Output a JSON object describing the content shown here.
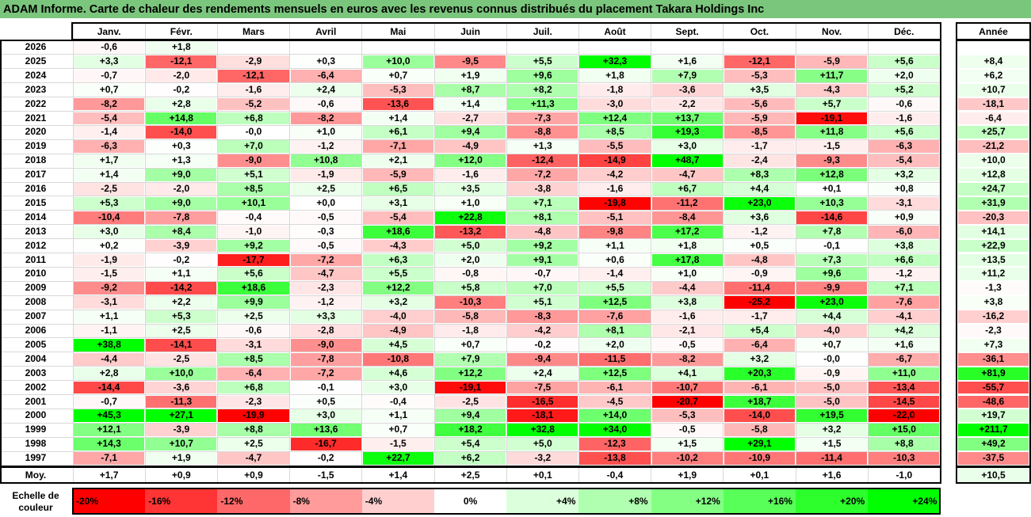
{
  "title": "ADAM Informe. Carte de chaleur des rendements mensuels en euros avec les revenus connus distribués du placement Takara Holdings Inc",
  "chart_data": {
    "type": "heatmap",
    "months": [
      "Janv.",
      "Févr.",
      "Mars",
      "Avril",
      "Mai",
      "Juin",
      "Juil.",
      "Août",
      "Sept.",
      "Oct.",
      "Nov.",
      "Déc."
    ],
    "year_label": "Année",
    "rows": [
      {
        "year": "2026",
        "values": [
          "-0,6",
          "+1,8",
          "",
          "",
          "",
          "",
          "",
          "",
          "",
          "",
          "",
          ""
        ],
        "annual": ""
      },
      {
        "year": "2025",
        "values": [
          "+3,3",
          "-12,1",
          "-2,9",
          "+0,3",
          "+10,0",
          "-9,5",
          "+5,5",
          "+32,3",
          "+1,6",
          "-12,1",
          "-5,9",
          "+5,6"
        ],
        "annual": "+8,4"
      },
      {
        "year": "2024",
        "values": [
          "-0,7",
          "-2,0",
          "-12,1",
          "-6,4",
          "+0,7",
          "+1,9",
          "+9,6",
          "+1,8",
          "+7,9",
          "-5,3",
          "+11,7",
          "+2,0"
        ],
        "annual": "+6,2"
      },
      {
        "year": "2023",
        "values": [
          "+0,7",
          "-0,2",
          "-1,6",
          "+2,4",
          "-5,3",
          "+8,7",
          "+8,2",
          "-1,8",
          "-3,6",
          "+3,5",
          "-4,3",
          "+5,2"
        ],
        "annual": "+10,7"
      },
      {
        "year": "2022",
        "values": [
          "-8,2",
          "+2,8",
          "-5,2",
          "-0,6",
          "-13,6",
          "+1,4",
          "+11,3",
          "-3,0",
          "-2,2",
          "-5,6",
          "+5,7",
          "-0,6"
        ],
        "annual": "-18,1"
      },
      {
        "year": "2021",
        "values": [
          "-5,4",
          "+14,8",
          "+6,8",
          "-8,2",
          "+1,4",
          "-2,7",
          "-7,3",
          "+12,4",
          "+13,7",
          "-5,9",
          "-19,1",
          "-1,6"
        ],
        "annual": "-6,4"
      },
      {
        "year": "2020",
        "values": [
          "-1,4",
          "-14,0",
          "-0,0",
          "+1,0",
          "+6,1",
          "+9,4",
          "-8,8",
          "+8,5",
          "+19,3",
          "-8,5",
          "+11,8",
          "+5,6"
        ],
        "annual": "+25,7"
      },
      {
        "year": "2019",
        "values": [
          "-6,3",
          "+0,3",
          "+7,0",
          "-1,2",
          "-7,1",
          "-4,9",
          "+1,3",
          "-5,5",
          "+3,0",
          "-1,7",
          "-1,5",
          "-6,3"
        ],
        "annual": "-21,2"
      },
      {
        "year": "2018",
        "values": [
          "+1,7",
          "+1,3",
          "-9,0",
          "+10,8",
          "+2,1",
          "+12,0",
          "-12,4",
          "-14,9",
          "+48,7",
          "-2,4",
          "-9,3",
          "-5,4"
        ],
        "annual": "+10,0"
      },
      {
        "year": "2017",
        "values": [
          "+1,4",
          "+9,0",
          "+5,1",
          "-1,9",
          "-5,9",
          "-1,6",
          "-7,2",
          "-4,2",
          "-4,7",
          "+8,3",
          "+12,8",
          "+3,2"
        ],
        "annual": "+12,8"
      },
      {
        "year": "2016",
        "values": [
          "-2,5",
          "-2,0",
          "+8,5",
          "+2,5",
          "+6,5",
          "+3,5",
          "-3,8",
          "-1,6",
          "+6,7",
          "+4,4",
          "+0,1",
          "+0,8"
        ],
        "annual": "+24,7"
      },
      {
        "year": "2015",
        "values": [
          "+5,3",
          "+9,0",
          "+10,1",
          "+0,0",
          "+3,1",
          "+1,0",
          "+7,1",
          "-19,8",
          "-11,2",
          "+23,0",
          "+10,3",
          "-3,1"
        ],
        "annual": "+31,9"
      },
      {
        "year": "2014",
        "values": [
          "-10,4",
          "-7,8",
          "-0,4",
          "-0,5",
          "-5,4",
          "+22,8",
          "+8,1",
          "-5,1",
          "-8,4",
          "+3,6",
          "-14,6",
          "+0,9"
        ],
        "annual": "-20,3"
      },
      {
        "year": "2013",
        "values": [
          "+3,0",
          "+8,4",
          "-1,0",
          "-0,3",
          "+18,6",
          "-13,2",
          "-4,8",
          "-9,8",
          "+17,2",
          "-1,2",
          "+7,8",
          "-6,0"
        ],
        "annual": "+14,1"
      },
      {
        "year": "2012",
        "values": [
          "+0,2",
          "-3,9",
          "+9,2",
          "-0,5",
          "-4,3",
          "+5,0",
          "+9,2",
          "+1,1",
          "+1,8",
          "+0,5",
          "-0,1",
          "+3,8"
        ],
        "annual": "+22,9"
      },
      {
        "year": "2011",
        "values": [
          "-1,9",
          "-0,2",
          "-17,7",
          "-7,2",
          "+6,3",
          "+2,0",
          "+9,1",
          "+0,6",
          "+17,8",
          "-4,8",
          "+7,3",
          "+6,6"
        ],
        "annual": "+13,5"
      },
      {
        "year": "2010",
        "values": [
          "-1,5",
          "+1,1",
          "+5,6",
          "-4,7",
          "+5,5",
          "-0,8",
          "-0,7",
          "-1,4",
          "+1,0",
          "-0,9",
          "+9,6",
          "-1,2"
        ],
        "annual": "+11,2"
      },
      {
        "year": "2009",
        "values": [
          "-9,2",
          "-14,2",
          "+18,6",
          "-2,3",
          "+12,2",
          "+5,8",
          "+7,0",
          "+5,5",
          "-4,4",
          "-11,4",
          "-9,9",
          "+7,1"
        ],
        "annual": "-1,3"
      },
      {
        "year": "2008",
        "values": [
          "-3,1",
          "+2,2",
          "+9,9",
          "-1,2",
          "+3,2",
          "-10,3",
          "+5,1",
          "+12,5",
          "+3,8",
          "-25,2",
          "+23,0",
          "-7,6"
        ],
        "annual": "+3,8"
      },
      {
        "year": "2007",
        "values": [
          "+1,1",
          "+5,3",
          "+2,5",
          "+3,3",
          "-4,0",
          "-5,8",
          "-8,3",
          "-7,6",
          "-1,6",
          "-1,7",
          "+4,4",
          "-4,1"
        ],
        "annual": "-16,2"
      },
      {
        "year": "2006",
        "values": [
          "-1,1",
          "+2,5",
          "-0,6",
          "-2,8",
          "-4,9",
          "-1,8",
          "-4,2",
          "+8,1",
          "-2,1",
          "+5,4",
          "-4,0",
          "+4,2"
        ],
        "annual": "-2,3"
      },
      {
        "year": "2005",
        "values": [
          "+38,8",
          "-14,1",
          "-3,1",
          "-9,0",
          "+4,5",
          "+0,7",
          "-0,2",
          "+2,0",
          "-0,5",
          "-6,4",
          "+0,7",
          "+1,6"
        ],
        "annual": "+7,3"
      },
      {
        "year": "2004",
        "values": [
          "-4,4",
          "-2,5",
          "+8,5",
          "-7,8",
          "-10,8",
          "+7,9",
          "-9,4",
          "-11,5",
          "-8,2",
          "+3,2",
          "-0,0",
          "-6,7"
        ],
        "annual": "-36,1"
      },
      {
        "year": "2003",
        "values": [
          "+2,8",
          "+10,0",
          "-6,4",
          "-7,2",
          "+4,6",
          "+12,2",
          "+2,4",
          "+12,5",
          "+4,1",
          "+20,3",
          "-0,9",
          "+11,0"
        ],
        "annual": "+81,9"
      },
      {
        "year": "2002",
        "values": [
          "-14,4",
          "-3,6",
          "+6,8",
          "-0,1",
          "+3,0",
          "-19,1",
          "-7,5",
          "-6,1",
          "-10,7",
          "-6,1",
          "-5,0",
          "-13,4"
        ],
        "annual": "-55,7"
      },
      {
        "year": "2001",
        "values": [
          "-0,7",
          "-11,3",
          "-2,3",
          "+0,5",
          "-0,4",
          "-2,5",
          "-16,5",
          "-4,5",
          "-20,7",
          "+18,7",
          "-5,0",
          "-14,5"
        ],
        "annual": "-48,6"
      },
      {
        "year": "2000",
        "values": [
          "+45,3",
          "+27,1",
          "-19,9",
          "+3,0",
          "+1,1",
          "+9,4",
          "-18,1",
          "+14,0",
          "-5,3",
          "-14,0",
          "+19,5",
          "-22,0"
        ],
        "annual": "+19,7"
      },
      {
        "year": "1999",
        "values": [
          "+12,1",
          "-3,9",
          "+8,8",
          "+13,6",
          "+0,7",
          "+18,2",
          "+32,8",
          "+34,0",
          "-0,5",
          "-5,8",
          "+3,2",
          "+15,0"
        ],
        "annual": "+211,7"
      },
      {
        "year": "1998",
        "values": [
          "+14,3",
          "+10,7",
          "+2,5",
          "-16,7",
          "-1,5",
          "+5,4",
          "+5,0",
          "-12,3",
          "+1,5",
          "+29,1",
          "+1,5",
          "+8,8"
        ],
        "annual": "+49,2"
      },
      {
        "year": "1997",
        "values": [
          "-7,1",
          "+1,9",
          "-4,7",
          "-0,2",
          "+22,7",
          "+6,2",
          "-3,2",
          "-13,8",
          "-10,2",
          "-10,9",
          "-11,4",
          "-10,3"
        ],
        "annual": "-37,5"
      }
    ],
    "average": {
      "label": "Moy.",
      "values": [
        "+1,7",
        "+0,9",
        "+0,9",
        "-1,5",
        "+1,4",
        "+2,5",
        "+0,1",
        "-0,4",
        "+1,9",
        "+0,1",
        "+1,6",
        "-1,0"
      ],
      "annual": "+10,5"
    },
    "color_scale": {
      "label": "Echelle de couleur",
      "stops": [
        "-20%",
        "-16%",
        "-12%",
        "-8%",
        "-4%",
        "0%",
        "+4%",
        "+8%",
        "+12%",
        "+16%",
        "+20%",
        "+24%"
      ],
      "values": [
        -20,
        -16,
        -12,
        -8,
        -4,
        0,
        4,
        8,
        12,
        16,
        20,
        24
      ]
    },
    "colors": {
      "negative_max": "#ff0000",
      "neutral": "#ffffff",
      "positive_max": "#00ff00",
      "title_bg": "#7bc67d"
    }
  }
}
